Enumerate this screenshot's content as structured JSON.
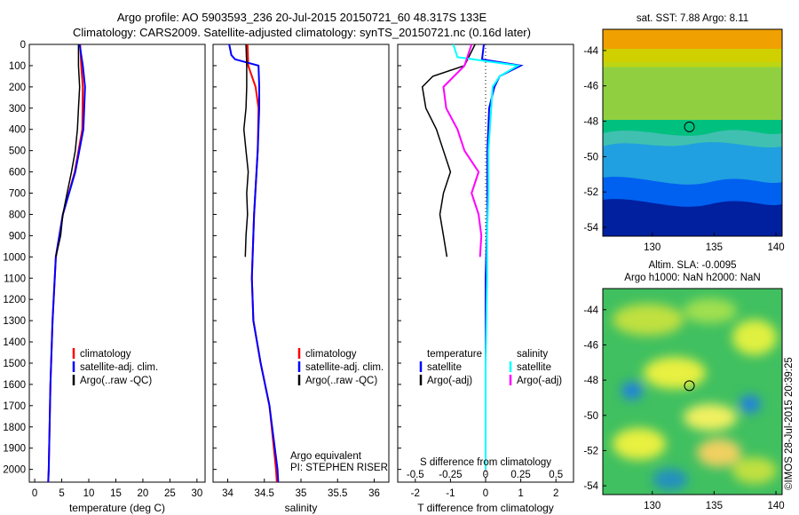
{
  "header": {
    "title_line1": "Argo profile: AO 5903593_236 20-Jul-2015 20150721_60 48.317S 133E",
    "title_line2": "Climatology: CARS2009. Satellite-adjusted climatology: synTS_20150721.nc (0.16d later)"
  },
  "colors": {
    "climatology": "#ff0000",
    "satellite": "#0000ff",
    "argo": "#000000",
    "satellite_salinity": "#00ffff",
    "argo_salinity": "#ff00ff"
  },
  "depth_ticks": [
    "0",
    "100",
    "200",
    "300",
    "400",
    "500",
    "600",
    "700",
    "800",
    "900",
    "1000",
    "1100",
    "1200",
    "1300",
    "1400",
    "1500",
    "1600",
    "1700",
    "1800",
    "1900",
    "2000"
  ],
  "chart_data": [
    {
      "type": "line",
      "panel": "temperature",
      "xlabel": "temperature (deg C)",
      "xlim": [
        -1,
        31.5
      ],
      "ylim": [
        2060,
        0
      ],
      "xticks": [
        "0",
        "5",
        "10",
        "15",
        "20",
        "25",
        "30"
      ],
      "legend": [
        "climatology",
        "satellite-adj. clim.",
        "Argo(..raw -QC)"
      ],
      "series": [
        {
          "name": "climatology",
          "color": "red",
          "depth": [
            0,
            100,
            200,
            400,
            600,
            800,
            1000,
            1300,
            1600,
            2000,
            2060
          ],
          "values": [
            8.4,
            8.6,
            8.9,
            8.8,
            7.4,
            5.2,
            3.9,
            3.3,
            2.9,
            2.6,
            2.5
          ]
        },
        {
          "name": "satellite-adj. clim.",
          "color": "blue",
          "depth": [
            0,
            100,
            200,
            400,
            600,
            800,
            1000,
            1300,
            1600,
            2000,
            2060
          ],
          "values": [
            8.3,
            8.9,
            9.3,
            9.0,
            7.5,
            5.2,
            3.9,
            3.3,
            2.9,
            2.6,
            2.5
          ]
        },
        {
          "name": "Argo(..raw -QC)",
          "color": "black",
          "depth": [
            0,
            100,
            200,
            300,
            400,
            500,
            600,
            700,
            800,
            900,
            1000
          ],
          "values": [
            8.1,
            8.1,
            8.3,
            8.1,
            7.9,
            7.5,
            6.8,
            6.0,
            5.2,
            4.8,
            3.9
          ]
        }
      ]
    },
    {
      "type": "line",
      "panel": "salinity",
      "xlabel": "salinity",
      "xlim": [
        33.8,
        36.2
      ],
      "ylim": [
        2060,
        0
      ],
      "xticks": [
        "34",
        "34.5",
        "35",
        "35.5",
        "36"
      ],
      "legend": [
        "climatology",
        "satellite-adj. clim.",
        "Argo(..raw -QC)"
      ],
      "annotation": [
        "Argo equivalent",
        "PI: STEPHEN RISER"
      ],
      "series": [
        {
          "name": "climatology",
          "color": "red",
          "depth": [
            0,
            100,
            200,
            300,
            500,
            800,
            1100,
            1300,
            1500,
            1700,
            2000,
            2060
          ],
          "values": [
            34.27,
            34.28,
            34.38,
            34.42,
            34.41,
            34.36,
            34.33,
            34.35,
            34.45,
            34.57,
            34.66,
            34.67
          ]
        },
        {
          "name": "satellite-adj. clim.",
          "color": "blue",
          "depth": [
            0,
            50,
            70,
            100,
            200,
            300,
            500,
            800,
            1100,
            1300,
            1500,
            1700,
            2000,
            2060
          ],
          "values": [
            34.02,
            34.05,
            34.1,
            34.42,
            34.43,
            34.43,
            34.41,
            34.36,
            34.33,
            34.35,
            34.45,
            34.57,
            34.68,
            34.69
          ]
        },
        {
          "name": "Argo(..raw -QC)",
          "color": "black",
          "depth": [
            0,
            100,
            200,
            300,
            400,
            500,
            600,
            700,
            800,
            900,
            1000
          ],
          "values": [
            34.25,
            34.26,
            34.26,
            34.25,
            34.22,
            34.25,
            34.28,
            34.26,
            34.27,
            34.25,
            34.24
          ]
        }
      ]
    },
    {
      "type": "line",
      "panel": "difference",
      "xlabel": "T difference from climatology",
      "top_axis_label": "S difference from climatology",
      "xlim": [
        -2.5,
        2.5
      ],
      "ylim": [
        2060,
        0
      ],
      "xticks": [
        "-2",
        "-1",
        "0",
        "1",
        "2"
      ],
      "top_ticks": [
        "-0.5",
        "-0.25",
        "0",
        "0.25",
        "0.5"
      ],
      "legend_groups": [
        {
          "title": "temperature",
          "items": [
            "satellite",
            "Argo(-adj)"
          ]
        },
        {
          "title": "salinity",
          "items": [
            "satellite",
            "Argo(-adj)"
          ]
        }
      ],
      "series": [
        {
          "name": "temperature satellite",
          "color": "blue",
          "depth": [
            0,
            70,
            100,
            150,
            200,
            300,
            500,
            800,
            1100,
            1500,
            2000
          ],
          "values": [
            -0.05,
            -0.1,
            1.0,
            0.4,
            0.25,
            0.1,
            0.05,
            0.05,
            0.0,
            0.0,
            0.0
          ]
        },
        {
          "name": "temperature Argo(-adj)",
          "color": "black",
          "depth": [
            0,
            100,
            150,
            200,
            300,
            400,
            500,
            600,
            700,
            800,
            900,
            1000
          ],
          "values": [
            -0.3,
            -0.6,
            -1.5,
            -1.8,
            -1.7,
            -1.4,
            -1.2,
            -1.0,
            -1.2,
            -1.3,
            -1.2,
            -1.1
          ]
        },
        {
          "name": "salinity satellite",
          "color": "cyan",
          "depth": [
            0,
            60,
            100,
            150,
            200,
            300,
            500,
            700,
            900,
            1100,
            1500,
            2000
          ],
          "values": [
            -0.23,
            -0.2,
            0.23,
            0.1,
            0.05,
            0.04,
            0.02,
            0.02,
            0.01,
            0.01,
            0.0,
            0.0
          ]
        },
        {
          "name": "salinity Argo(-adj)",
          "color": "magenta",
          "depth": [
            0,
            100,
            200,
            300,
            400,
            500,
            600,
            700,
            800,
            900,
            1000
          ],
          "values": [
            -0.1,
            -0.15,
            -0.3,
            -0.28,
            -0.2,
            -0.15,
            -0.05,
            -0.1,
            -0.05,
            -0.03,
            -0.04
          ]
        }
      ]
    },
    {
      "type": "heatmap",
      "panel": "SST map",
      "title": "sat. SST: 7.88 Argo: 8.11",
      "xlim": [
        126,
        140.5
      ],
      "ylim": [
        -54.5,
        -42.8
      ],
      "xticks": [
        "130",
        "135",
        "140"
      ],
      "yticks": [
        "-44",
        "-46",
        "-48",
        "-50",
        "-52",
        "-54"
      ],
      "marker": {
        "lon": 133,
        "lat": -48.317
      }
    },
    {
      "type": "heatmap",
      "panel": "SLA map",
      "title": "Altim. SLA: -0.0095",
      "subtitle": "Argo h1000: NaN h2000: NaN",
      "xlim": [
        126,
        140.5
      ],
      "ylim": [
        -54.5,
        -42.8
      ],
      "xticks": [
        "130",
        "135",
        "140"
      ],
      "yticks": [
        "-44",
        "-46",
        "-48",
        "-50",
        "-52",
        "-54"
      ],
      "marker": {
        "lon": 133,
        "lat": -48.317
      }
    }
  ],
  "footer": {
    "stamp": "©IMOS 28-Jul-2015 20:39:25"
  }
}
